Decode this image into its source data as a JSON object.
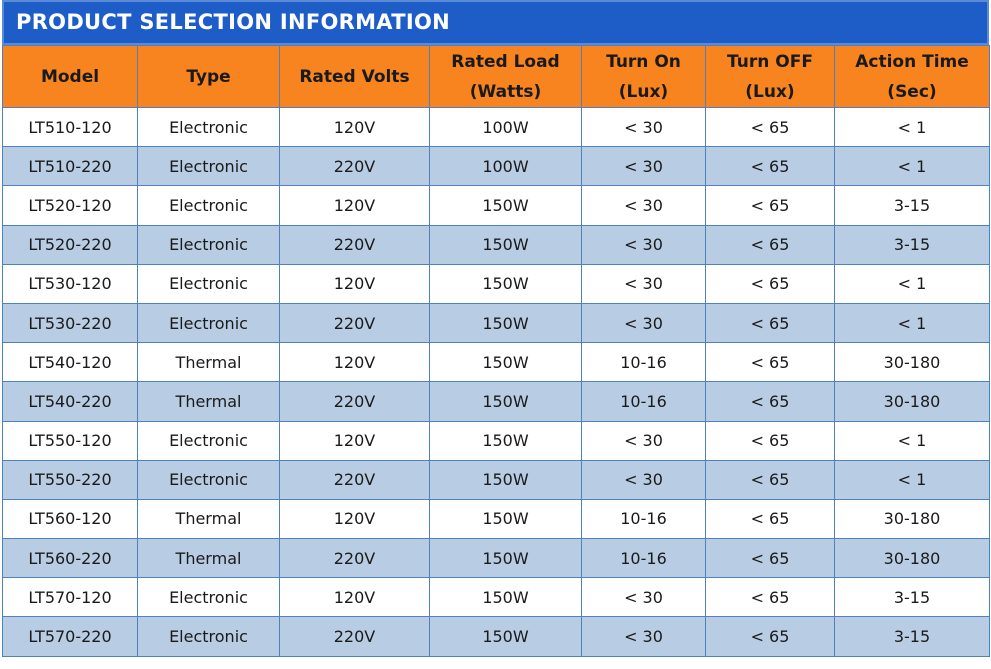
{
  "header": {
    "title": "PRODUCT SELECTION INFORMATION"
  },
  "table": {
    "columns": [
      "Model",
      "Type",
      "Rated Volts",
      "Rated Load\n(Watts)",
      "Turn On\n(Lux)",
      "Turn OFF\n(Lux)",
      "Action Time\n(Sec)"
    ],
    "rows": [
      [
        "LT510-120",
        "Electronic",
        "120V",
        "100W",
        "< 30",
        "< 65",
        "< 1"
      ],
      [
        "LT510-220",
        "Electronic",
        "220V",
        "100W",
        "< 30",
        "< 65",
        "< 1"
      ],
      [
        "LT520-120",
        "Electronic",
        "120V",
        "150W",
        "< 30",
        "< 65",
        "3-15"
      ],
      [
        "LT520-220",
        "Electronic",
        "220V",
        "150W",
        "< 30",
        "< 65",
        "3-15"
      ],
      [
        "LT530-120",
        "Electronic",
        "120V",
        "150W",
        "< 30",
        "< 65",
        "< 1"
      ],
      [
        "LT530-220",
        "Electronic",
        "220V",
        "150W",
        "< 30",
        "< 65",
        "< 1"
      ],
      [
        "LT540-120",
        "Thermal",
        "120V",
        "150W",
        "10-16",
        "< 65",
        "30-180"
      ],
      [
        "LT540-220",
        "Thermal",
        "220V",
        "150W",
        "10-16",
        "< 65",
        "30-180"
      ],
      [
        "LT550-120",
        "Electronic",
        "120V",
        "150W",
        "< 30",
        "< 65",
        "< 1"
      ],
      [
        "LT550-220",
        "Electronic",
        "220V",
        "150W",
        "< 30",
        "< 65",
        "< 1"
      ],
      [
        "LT560-120",
        "Thermal",
        "120V",
        "150W",
        "10-16",
        "< 65",
        "30-180"
      ],
      [
        "LT560-220",
        "Thermal",
        "220V",
        "150W",
        "10-16",
        "< 65",
        "30-180"
      ],
      [
        "LT570-120",
        "Electronic",
        "120V",
        "150W",
        "< 30",
        "< 65",
        "3-15"
      ],
      [
        "LT570-220",
        "Electronic",
        "220V",
        "150W",
        "< 30",
        "< 65",
        "3-15"
      ]
    ]
  }
}
